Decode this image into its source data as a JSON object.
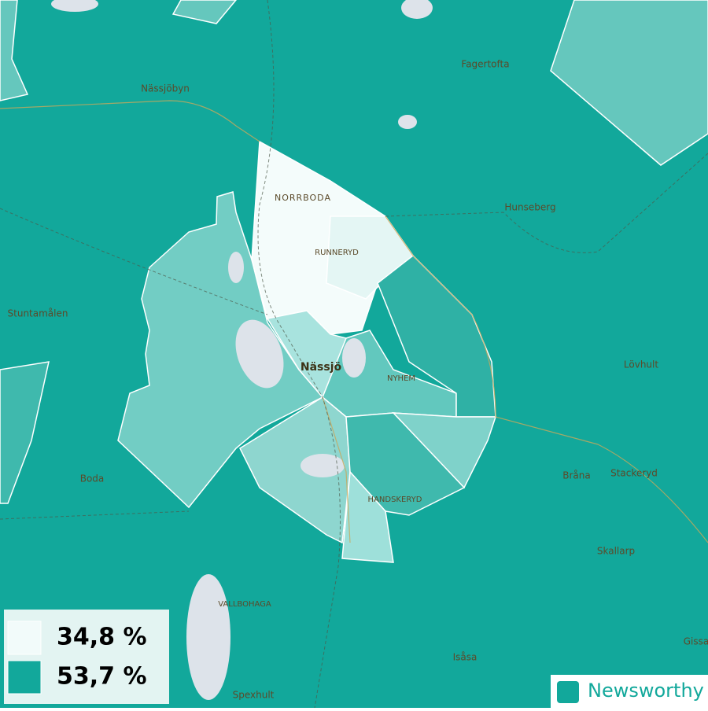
{
  "map": {
    "places": [
      "Nässjöbyn",
      "Fagertofta",
      "NORRBODA",
      "RUNNERYD",
      "Hunseberg",
      "Stuntamålen",
      "Nässjö",
      "NYHEM",
      "Lövhult",
      "Boda",
      "Bråna",
      "Stackeryd",
      "HANDSKERYD",
      "Skallarp",
      "VALLBOHAGA",
      "Isåsa",
      "Spexhult",
      "Gissa"
    ],
    "legend": [
      {
        "label": "34,8 %",
        "color": "#f2fbfa"
      },
      {
        "label": "53,7 %",
        "color": "#12a89b"
      }
    ],
    "brand": "Newsworthy"
  }
}
